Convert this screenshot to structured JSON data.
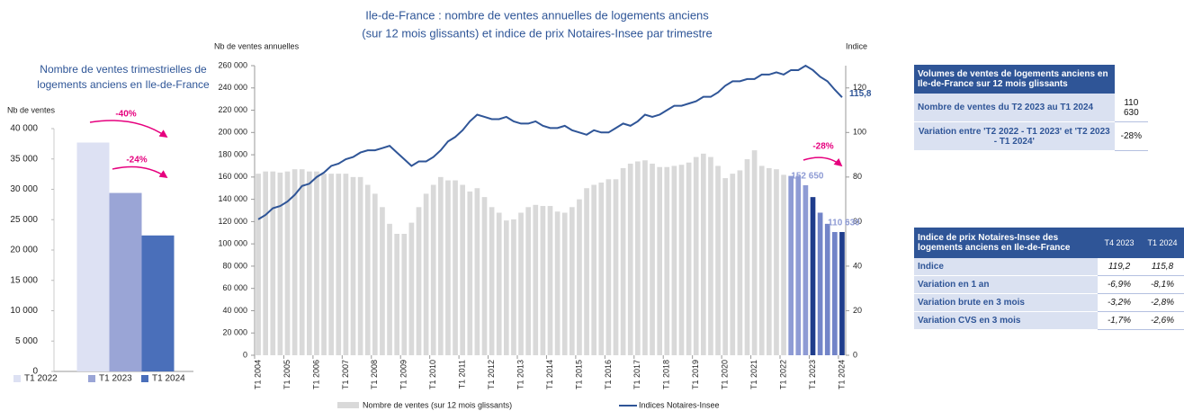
{
  "chart_data": [
    {
      "type": "bar",
      "title": "Nombre de ventes trimestrielles de logements anciens en Ile-de-France",
      "y_label": "Nb de ventes",
      "categories": [
        null
      ],
      "series": [
        {
          "name": "T1 2022",
          "color": "#dde1f3",
          "values": [
            37700
          ]
        },
        {
          "name": "T1 2023",
          "color": "#9aa5d6",
          "values": [
            29400
          ]
        },
        {
          "name": "T1 2024",
          "color": "#4a6fba",
          "values": [
            22400
          ]
        }
      ],
      "ylim": [
        0,
        40000
      ],
      "yticks": [
        0,
        {
          "value": 5000,
          "label": "5 000"
        },
        {
          "value": 10000,
          "label": "10 000"
        },
        {
          "value": 15000,
          "label": "15 000"
        },
        {
          "value": 20000,
          "label": "20 000"
        },
        {
          "value": 25000,
          "label": "25 000"
        },
        {
          "value": 30000,
          "label": "30 000"
        },
        {
          "value": 35000,
          "label": "35 000"
        },
        {
          "value": 40000,
          "label": "40 000"
        }
      ],
      "annotations": [
        "-40%",
        "-24%"
      ],
      "legend": "bottom"
    },
    {
      "type": "bar_line",
      "title": [
        "Ile-de-France : nombre de ventes annuelles de logements anciens",
        "(sur 12 mois glissants) et indice de prix Notaires-Insee par trimestre"
      ],
      "y_label": "Nb de ventes annuelles",
      "y2_label": "Indice",
      "categories": [
        "T1 2004",
        null,
        null,
        null,
        "T1 2005",
        null,
        null,
        null,
        "T1 2006",
        null,
        null,
        null,
        "T1 2007",
        null,
        null,
        null,
        "T1 2008",
        null,
        null,
        null,
        "T1 2009",
        null,
        null,
        null,
        "T1 2010",
        null,
        null,
        null,
        "T1 2011",
        null,
        null,
        null,
        "T1 2012",
        null,
        null,
        null,
        "T1 2013",
        null,
        null,
        null,
        "T1 2014",
        null,
        null,
        null,
        "T1 2015",
        null,
        null,
        null,
        "T1 2016",
        null,
        null,
        null,
        "T1 2017",
        null,
        null,
        null,
        "T1 2018",
        null,
        null,
        null,
        "T1 2019",
        null,
        null,
        null,
        "T1 2020",
        null,
        null,
        null,
        "T1 2021",
        null,
        null,
        null,
        "T1 2022",
        null,
        null,
        null,
        "T1 2023",
        null,
        null,
        null,
        "T1 2024"
      ],
      "series": [
        {
          "name": "Nombre de ventes (sur 12 mois glissants)",
          "color": "#d9d9d9",
          "colors": [
            "#d9d9d9",
            "#d9d9d9",
            "#d9d9d9",
            "#d9d9d9",
            "#d9d9d9",
            "#d9d9d9",
            "#d9d9d9",
            "#d9d9d9",
            "#d9d9d9",
            "#d9d9d9",
            "#d9d9d9",
            "#d9d9d9",
            "#d9d9d9",
            "#d9d9d9",
            "#d9d9d9",
            "#d9d9d9",
            "#d9d9d9",
            "#d9d9d9",
            "#d9d9d9",
            "#d9d9d9",
            "#d9d9d9",
            "#d9d9d9",
            "#d9d9d9",
            "#d9d9d9",
            "#d9d9d9",
            "#d9d9d9",
            "#d9d9d9",
            "#d9d9d9",
            "#d9d9d9",
            "#d9d9d9",
            "#d9d9d9",
            "#d9d9d9",
            "#d9d9d9",
            "#d9d9d9",
            "#d9d9d9",
            "#d9d9d9",
            "#d9d9d9",
            "#d9d9d9",
            "#d9d9d9",
            "#d9d9d9",
            "#d9d9d9",
            "#d9d9d9",
            "#d9d9d9",
            "#d9d9d9",
            "#d9d9d9",
            "#d9d9d9",
            "#d9d9d9",
            "#d9d9d9",
            "#d9d9d9",
            "#d9d9d9",
            "#d9d9d9",
            "#d9d9d9",
            "#d9d9d9",
            "#d9d9d9",
            "#d9d9d9",
            "#d9d9d9",
            "#d9d9d9",
            "#d9d9d9",
            "#d9d9d9",
            "#d9d9d9",
            "#d9d9d9",
            "#d9d9d9",
            "#d9d9d9",
            "#d9d9d9",
            "#d9d9d9",
            "#d9d9d9",
            "#d9d9d9",
            "#d9d9d9",
            "#d9d9d9",
            "#d9d9d9",
            "#d9d9d9",
            "#d9d9d9",
            "#d9d9d9",
            "#8e9bd4",
            "#8e9bd4",
            "#8e9bd4",
            "#1f3d8c",
            "#7284c8",
            "#7284c8",
            "#7284c8",
            "#1f3d8c"
          ],
          "values": [
            163000,
            165000,
            165000,
            164000,
            165000,
            167000,
            167000,
            165000,
            165000,
            163000,
            163000,
            163000,
            163000,
            160000,
            160000,
            153000,
            145000,
            133000,
            118000,
            109000,
            109000,
            119000,
            133000,
            145000,
            153000,
            160000,
            157000,
            157000,
            153000,
            147000,
            150000,
            142000,
            133000,
            128000,
            121000,
            122000,
            128000,
            133000,
            135000,
            134000,
            134000,
            129000,
            128000,
            133000,
            140000,
            150000,
            153000,
            155000,
            158000,
            158000,
            168000,
            172000,
            174000,
            175000,
            172000,
            169000,
            169000,
            170000,
            171000,
            173000,
            178000,
            181000,
            178000,
            170000,
            159000,
            163000,
            166000,
            176000,
            184000,
            170000,
            168000,
            167000,
            162000,
            161000,
            161000,
            152650,
            142000,
            128000,
            118000,
            110630,
            110630
          ],
          "value_labels": [
            null,
            null,
            null,
            null,
            null,
            null,
            null,
            null,
            null,
            null,
            null,
            null,
            null,
            null,
            null,
            null,
            null,
            null,
            null,
            null,
            null,
            null,
            null,
            null,
            null,
            null,
            null,
            null,
            null,
            null,
            null,
            null,
            null,
            null,
            null,
            null,
            null,
            null,
            null,
            null,
            null,
            null,
            null,
            null,
            null,
            null,
            null,
            null,
            null,
            null,
            null,
            null,
            null,
            null,
            null,
            null,
            null,
            null,
            null,
            null,
            null,
            null,
            null,
            null,
            null,
            null,
            null,
            null,
            null,
            null,
            null,
            null,
            null,
            null,
            null,
            "152 650",
            null,
            null,
            null,
            null,
            "110 630"
          ]
        },
        {
          "name": "Indices Notaires-Insee",
          "color": "#2f5597",
          "type": "line",
          "axis": "y2",
          "values": [
            61,
            63,
            66,
            67,
            69,
            72,
            76,
            77,
            80,
            82,
            85,
            86,
            88,
            89,
            91,
            92,
            92,
            93,
            94,
            91,
            88,
            85,
            87,
            87,
            89,
            92,
            96,
            98,
            101,
            105,
            108,
            107,
            106,
            106,
            107,
            105,
            104,
            104,
            105,
            103,
            102,
            102,
            103,
            101,
            100,
            99,
            101,
            100,
            100,
            102,
            104,
            103,
            105,
            108,
            107,
            108,
            110,
            112,
            112,
            113,
            114,
            116,
            116,
            118,
            121,
            123,
            123,
            124,
            124,
            126,
            126,
            127,
            126,
            128,
            128,
            130,
            128,
            125,
            123,
            119.2,
            115.8
          ],
          "value_labels": [
            null,
            null,
            null,
            null,
            null,
            null,
            null,
            null,
            null,
            null,
            null,
            null,
            null,
            null,
            null,
            null,
            null,
            null,
            null,
            null,
            null,
            null,
            null,
            null,
            null,
            null,
            null,
            null,
            null,
            null,
            null,
            null,
            null,
            null,
            null,
            null,
            null,
            null,
            null,
            null,
            null,
            null,
            null,
            null,
            null,
            null,
            null,
            null,
            null,
            null,
            null,
            null,
            null,
            null,
            null,
            null,
            null,
            null,
            null,
            null,
            null,
            null,
            null,
            null,
            null,
            null,
            null,
            null,
            null,
            null,
            null,
            null,
            null,
            null,
            null,
            null,
            null,
            null,
            null,
            null,
            "115,8"
          ]
        }
      ],
      "ylim": [
        0,
        260000
      ],
      "yticks": [
        0,
        {
          "value": 20000,
          "label": "20 000"
        },
        {
          "value": 40000,
          "label": "40 000"
        },
        {
          "value": 60000,
          "label": "60 000"
        },
        {
          "value": 80000,
          "label": "80 000"
        },
        {
          "value": 100000,
          "label": "100 000"
        },
        {
          "value": 120000,
          "label": "120 000"
        },
        {
          "value": 140000,
          "label": "140 000"
        },
        {
          "value": 160000,
          "label": "160 000"
        },
        {
          "value": 180000,
          "label": "180 000"
        },
        {
          "value": 200000,
          "label": "200 000"
        },
        {
          "value": 220000,
          "label": "220 000"
        },
        {
          "value": 240000,
          "label": "240 000"
        },
        {
          "value": 260000,
          "label": "260 000"
        }
      ],
      "y2lim": [
        0,
        130
      ],
      "y2ticks": [
        0,
        20,
        40,
        60,
        80,
        100,
        120
      ],
      "annotations": [
        "-28%"
      ],
      "legend": "bottom"
    }
  ],
  "tables": [
    {
      "header": [
        "Volumes de ventes de logements anciens en Ile-de-France sur 12 mois glissants"
      ],
      "rows": [
        [
          "Nombre de ventes du T2 2023 au T1 2024",
          "110 630"
        ],
        [
          "Variation entre 'T2 2022 - T1 2023' et 'T2 2023 - T1 2024'",
          "-28%"
        ]
      ]
    },
    {
      "header": [
        "Indice de prix Notaires-Insee des logements anciens en Ile-de-France",
        "T4 2023",
        "T1 2024"
      ],
      "rows": [
        [
          "Indice",
          "119,2",
          "115,8"
        ],
        [
          "Variation en 1 an",
          "-6,9%",
          "-8,1%"
        ],
        [
          "Variation brute en 3 mois",
          "-3,2%",
          "-2,8%"
        ],
        [
          "Variation CVS en 3 mois",
          "-1,7%",
          "-2,6%"
        ]
      ]
    }
  ]
}
